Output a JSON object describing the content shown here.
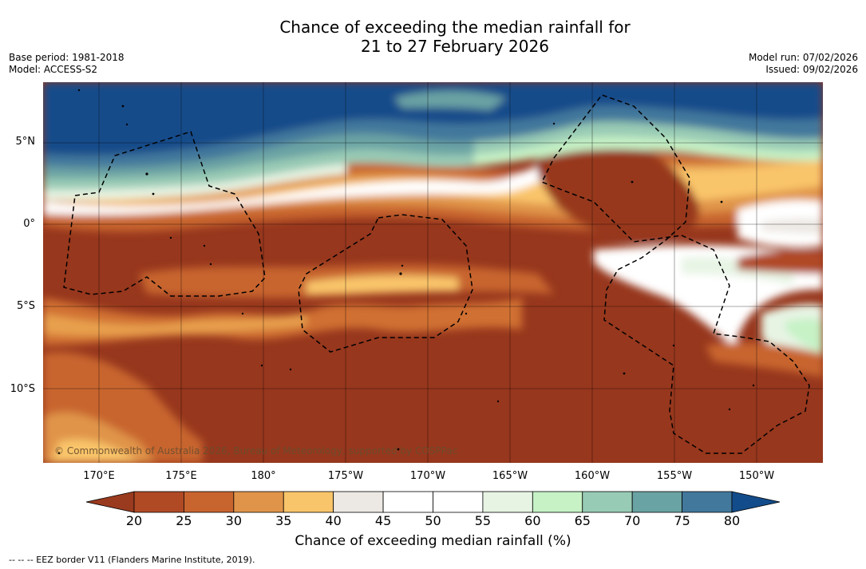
{
  "title_line1": "Chance of exceeding the median rainfall for",
  "title_line2": "21 to 27 February 2026",
  "base_period": "Base period: 1981-2018",
  "model": "Model: ACCESS-S2",
  "model_run": "Model run: 07/02/2026",
  "issued": "Issued: 09/02/2026",
  "lat_labels": [
    "5°N",
    "0°",
    "5°S",
    "10°S"
  ],
  "lon_labels": [
    "170°E",
    "175°E",
    "180°",
    "175°W",
    "170°W",
    "165°W",
    "160°W",
    "155°W",
    "150°W"
  ],
  "copyright": "© Commonwealth of Australia 2026, Bureau of Meteorology, supported by COSPPac",
  "colorbar": {
    "ticks": [
      "20",
      "25",
      "30",
      "35",
      "40",
      "45",
      "50",
      "55",
      "60",
      "65",
      "70",
      "75",
      "80"
    ],
    "colors": [
      "#9a3a1f",
      "#b04a25",
      "#c8652f",
      "#e0944a",
      "#f9c56a",
      "#ece8e3",
      "#ffffff",
      "#ffffff",
      "#e7f4e4",
      "#c6f2c6",
      "#98cbb5",
      "#6aa3a4",
      "#42789c",
      "#134c8a"
    ],
    "label": "Chance of exceeding median rainfall (%)"
  },
  "footnote": "--  --  -- EEZ border V11 (Flanders Marine Institute, 2019)."
}
